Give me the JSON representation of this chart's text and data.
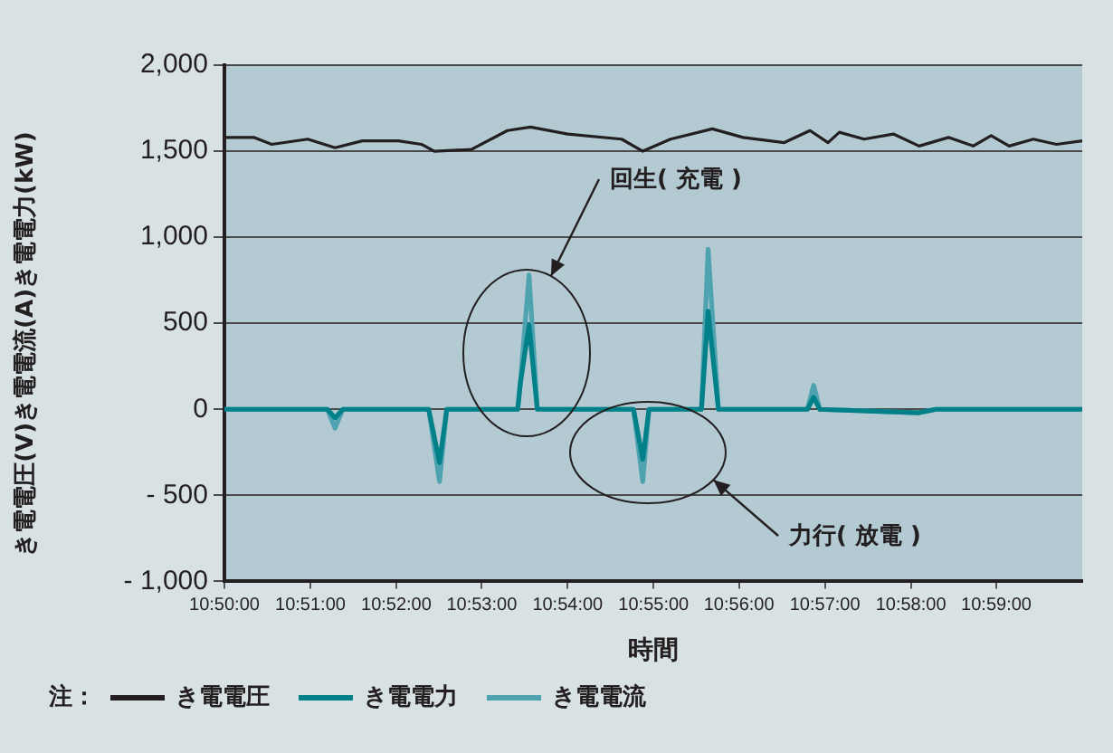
{
  "chart_data": {
    "type": "line",
    "xlabel": "時間",
    "ylabel": "き電電圧(V)き電電流(A)き電電力(kW)",
    "legend_title": "注：",
    "legend": "bottom",
    "grid": "y",
    "marker": "none",
    "line_style": "solid",
    "xlim": [
      10.8333,
      11.0
    ],
    "xticks": [
      {
        "value": 10.8333,
        "label": "10:50:00"
      },
      {
        "value": 10.85,
        "label": "10:51:00"
      },
      {
        "value": 10.8667,
        "label": "10:52:00"
      },
      {
        "value": 10.8833,
        "label": "10:53:00"
      },
      {
        "value": 10.9,
        "label": "10:54:00"
      },
      {
        "value": 10.9167,
        "label": "10:55:00"
      },
      {
        "value": 10.9333,
        "label": "10:56:00"
      },
      {
        "value": 10.95,
        "label": "10:57:00"
      },
      {
        "value": 10.9667,
        "label": "10:58:00"
      },
      {
        "value": 10.9833,
        "label": "10:59:00"
      }
    ],
    "ylim": [
      -1000,
      2000
    ],
    "yticks": [
      {
        "value": 2000,
        "label": "2,000"
      },
      {
        "value": 1500,
        "label": "1,500"
      },
      {
        "value": 1000,
        "label": "1,000"
      },
      500,
      0,
      {
        "value": -500,
        "label": "- 500"
      },
      {
        "value": -1000,
        "label": "- 1,000"
      }
    ],
    "annotations": [
      "回生( 充電 )",
      "力行( 放電 )"
    ],
    "series": [
      {
        "name": "き電電圧",
        "color": "#231f20",
        "x": [
          10.8333,
          10.839,
          10.8425,
          10.8495,
          10.8548,
          10.8601,
          10.8671,
          10.8716,
          10.8741,
          10.8813,
          10.8883,
          10.8928,
          10.9,
          10.9105,
          10.9146,
          10.92,
          10.9281,
          10.9341,
          10.9421,
          10.9471,
          10.9506,
          10.9528,
          10.9576,
          10.9633,
          10.9683,
          10.974,
          10.9788,
          10.9823,
          10.9858,
          10.9905,
          10.995,
          11.0
        ],
        "values": [
          1580,
          1580,
          1540,
          1570,
          1520,
          1560,
          1560,
          1540,
          1500,
          1510,
          1620,
          1640,
          1600,
          1570,
          1500,
          1570,
          1630,
          1580,
          1550,
          1620,
          1550,
          1610,
          1570,
          1600,
          1530,
          1580,
          1530,
          1590,
          1530,
          1570,
          1540,
          1560
        ]
      },
      {
        "name": "き電電力",
        "color": "#00818a",
        "x": [
          10.8333,
          10.8533,
          10.8548,
          10.8563,
          10.873,
          10.8751,
          10.8765,
          10.8903,
          10.8908,
          10.8925,
          10.8941,
          10.9128,
          10.9146,
          10.9158,
          10.926,
          10.9273,
          10.9293,
          10.9466,
          10.9478,
          10.949,
          10.9683,
          10.9716,
          11.0
        ],
        "values": [
          0,
          0,
          -50,
          0,
          0,
          -310,
          0,
          0,
          150,
          490,
          0,
          0,
          -290,
          0,
          0,
          570,
          0,
          0,
          70,
          0,
          -20,
          0,
          0
        ]
      },
      {
        "name": "き電電流",
        "color": "#4fa3b0",
        "x": [
          10.8333,
          10.8533,
          10.8548,
          10.8563,
          10.873,
          10.8751,
          10.8765,
          10.8903,
          10.8908,
          10.8925,
          10.8941,
          10.9128,
          10.9146,
          10.9158,
          10.926,
          10.9273,
          10.9293,
          10.9466,
          10.9478,
          10.949,
          10.9683,
          10.9716,
          11.0
        ],
        "values": [
          0,
          0,
          -110,
          0,
          0,
          -420,
          0,
          0,
          150,
          780,
          0,
          0,
          -420,
          0,
          0,
          930,
          0,
          0,
          140,
          0,
          -20,
          0,
          0
        ]
      }
    ]
  }
}
